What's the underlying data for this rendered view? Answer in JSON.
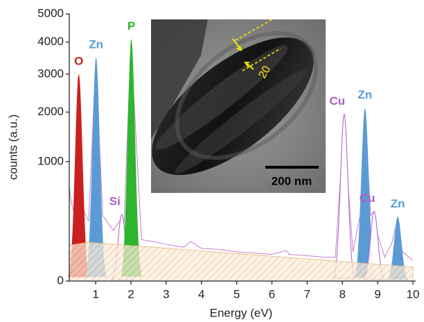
{
  "chart_data": {
    "type": "spectrum",
    "x_label": "Energy (eV)",
    "y_label": "counts (a.u.)",
    "yscale": "sqrt",
    "xlim": [
      0.25,
      10
    ],
    "ylim": [
      0,
      5000
    ],
    "xticks": [
      1,
      2,
      3,
      4,
      5,
      6,
      7,
      8,
      9,
      10
    ],
    "yticks": [
      0,
      1000,
      2000,
      3000,
      4000,
      5000
    ],
    "spectrum": {
      "color": "#c77dd1",
      "x": [
        0.25,
        0.3,
        0.4,
        0.5,
        0.6,
        0.8,
        1.0,
        1.2,
        1.5,
        1.7,
        1.75,
        1.8,
        2.0,
        2.3,
        2.6,
        3.0,
        3.5,
        3.7,
        4.0,
        4.5,
        5.0,
        5.5,
        6.0,
        6.4,
        6.5,
        7.0,
        7.5,
        7.8,
        7.95,
        8.05,
        8.15,
        8.3,
        8.5,
        8.64,
        8.8,
        8.9,
        9.0,
        9.2,
        9.4,
        9.57,
        9.7,
        10
      ],
      "values": [
        620,
        450,
        300,
        2900,
        400,
        250,
        3400,
        300,
        180,
        260,
        310,
        220,
        4000,
        120,
        110,
        95,
        80,
        110,
        75,
        70,
        60,
        55,
        50,
        65,
        50,
        45,
        40,
        40,
        800,
        1950,
        700,
        60,
        300,
        2050,
        300,
        340,
        150,
        40,
        100,
        280,
        60,
        30
      ]
    },
    "background": {
      "color": "#e8b77a",
      "x": [
        0.25,
        0.8,
        10
      ],
      "values": [
        90,
        105,
        14
      ]
    },
    "peaks": [
      {
        "label": "O",
        "x": 0.52,
        "height": 3000,
        "color": "#cc1f1f",
        "filled": true
      },
      {
        "label": "Zn",
        "x": 1.01,
        "height": 3500,
        "color": "#5b9bd5",
        "filled": true
      },
      {
        "label": "Si",
        "x": 1.74,
        "height": 310,
        "color": "#b05cc8",
        "filled": false
      },
      {
        "label": "P",
        "x": 2.01,
        "height": 4100,
        "color": "#2db52d",
        "filled": true
      },
      {
        "label": "Cu",
        "x": 8.05,
        "height": 1950,
        "color": "#b05cc8",
        "filled": false
      },
      {
        "label": "Zn",
        "x": 8.64,
        "height": 2100,
        "color": "#5b9bd5",
        "filled": true
      },
      {
        "label": "Cu",
        "x": 8.9,
        "height": 340,
        "color": "#b05cc8",
        "filled": false
      },
      {
        "label": "Zn",
        "x": 9.57,
        "height": 290,
        "color": "#5b9bd5",
        "filled": true
      }
    ],
    "inset": {
      "scale_bar": "200 nm",
      "annotation": "20"
    }
  }
}
